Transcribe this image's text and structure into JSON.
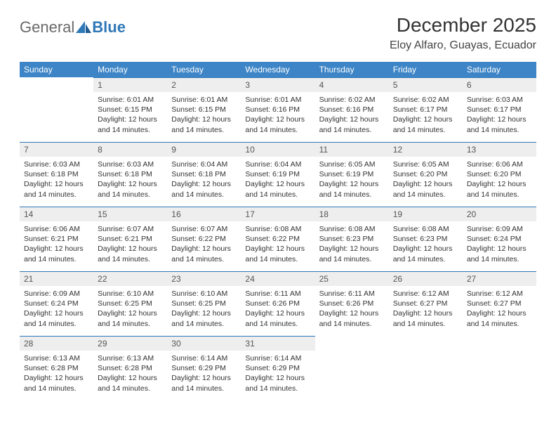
{
  "brand": {
    "part1": "General",
    "part2": "Blue"
  },
  "title": "December 2025",
  "location": "Eloy Alfaro, Guayas, Ecuador",
  "colors": {
    "header_bg": "#3d85c6",
    "header_fg": "#ffffff",
    "daynum_bg": "#eeeeee",
    "daynum_border": "#2f78b7",
    "text": "#333333"
  },
  "weekdays": [
    "Sunday",
    "Monday",
    "Tuesday",
    "Wednesday",
    "Thursday",
    "Friday",
    "Saturday"
  ],
  "weeks": [
    [
      null,
      {
        "n": "1",
        "sunrise": "Sunrise: 6:01 AM",
        "sunset": "Sunset: 6:15 PM",
        "daylight": "Daylight: 12 hours and 14 minutes."
      },
      {
        "n": "2",
        "sunrise": "Sunrise: 6:01 AM",
        "sunset": "Sunset: 6:15 PM",
        "daylight": "Daylight: 12 hours and 14 minutes."
      },
      {
        "n": "3",
        "sunrise": "Sunrise: 6:01 AM",
        "sunset": "Sunset: 6:16 PM",
        "daylight": "Daylight: 12 hours and 14 minutes."
      },
      {
        "n": "4",
        "sunrise": "Sunrise: 6:02 AM",
        "sunset": "Sunset: 6:16 PM",
        "daylight": "Daylight: 12 hours and 14 minutes."
      },
      {
        "n": "5",
        "sunrise": "Sunrise: 6:02 AM",
        "sunset": "Sunset: 6:17 PM",
        "daylight": "Daylight: 12 hours and 14 minutes."
      },
      {
        "n": "6",
        "sunrise": "Sunrise: 6:03 AM",
        "sunset": "Sunset: 6:17 PM",
        "daylight": "Daylight: 12 hours and 14 minutes."
      }
    ],
    [
      {
        "n": "7",
        "sunrise": "Sunrise: 6:03 AM",
        "sunset": "Sunset: 6:18 PM",
        "daylight": "Daylight: 12 hours and 14 minutes."
      },
      {
        "n": "8",
        "sunrise": "Sunrise: 6:03 AM",
        "sunset": "Sunset: 6:18 PM",
        "daylight": "Daylight: 12 hours and 14 minutes."
      },
      {
        "n": "9",
        "sunrise": "Sunrise: 6:04 AM",
        "sunset": "Sunset: 6:18 PM",
        "daylight": "Daylight: 12 hours and 14 minutes."
      },
      {
        "n": "10",
        "sunrise": "Sunrise: 6:04 AM",
        "sunset": "Sunset: 6:19 PM",
        "daylight": "Daylight: 12 hours and 14 minutes."
      },
      {
        "n": "11",
        "sunrise": "Sunrise: 6:05 AM",
        "sunset": "Sunset: 6:19 PM",
        "daylight": "Daylight: 12 hours and 14 minutes."
      },
      {
        "n": "12",
        "sunrise": "Sunrise: 6:05 AM",
        "sunset": "Sunset: 6:20 PM",
        "daylight": "Daylight: 12 hours and 14 minutes."
      },
      {
        "n": "13",
        "sunrise": "Sunrise: 6:06 AM",
        "sunset": "Sunset: 6:20 PM",
        "daylight": "Daylight: 12 hours and 14 minutes."
      }
    ],
    [
      {
        "n": "14",
        "sunrise": "Sunrise: 6:06 AM",
        "sunset": "Sunset: 6:21 PM",
        "daylight": "Daylight: 12 hours and 14 minutes."
      },
      {
        "n": "15",
        "sunrise": "Sunrise: 6:07 AM",
        "sunset": "Sunset: 6:21 PM",
        "daylight": "Daylight: 12 hours and 14 minutes."
      },
      {
        "n": "16",
        "sunrise": "Sunrise: 6:07 AM",
        "sunset": "Sunset: 6:22 PM",
        "daylight": "Daylight: 12 hours and 14 minutes."
      },
      {
        "n": "17",
        "sunrise": "Sunrise: 6:08 AM",
        "sunset": "Sunset: 6:22 PM",
        "daylight": "Daylight: 12 hours and 14 minutes."
      },
      {
        "n": "18",
        "sunrise": "Sunrise: 6:08 AM",
        "sunset": "Sunset: 6:23 PM",
        "daylight": "Daylight: 12 hours and 14 minutes."
      },
      {
        "n": "19",
        "sunrise": "Sunrise: 6:08 AM",
        "sunset": "Sunset: 6:23 PM",
        "daylight": "Daylight: 12 hours and 14 minutes."
      },
      {
        "n": "20",
        "sunrise": "Sunrise: 6:09 AM",
        "sunset": "Sunset: 6:24 PM",
        "daylight": "Daylight: 12 hours and 14 minutes."
      }
    ],
    [
      {
        "n": "21",
        "sunrise": "Sunrise: 6:09 AM",
        "sunset": "Sunset: 6:24 PM",
        "daylight": "Daylight: 12 hours and 14 minutes."
      },
      {
        "n": "22",
        "sunrise": "Sunrise: 6:10 AM",
        "sunset": "Sunset: 6:25 PM",
        "daylight": "Daylight: 12 hours and 14 minutes."
      },
      {
        "n": "23",
        "sunrise": "Sunrise: 6:10 AM",
        "sunset": "Sunset: 6:25 PM",
        "daylight": "Daylight: 12 hours and 14 minutes."
      },
      {
        "n": "24",
        "sunrise": "Sunrise: 6:11 AM",
        "sunset": "Sunset: 6:26 PM",
        "daylight": "Daylight: 12 hours and 14 minutes."
      },
      {
        "n": "25",
        "sunrise": "Sunrise: 6:11 AM",
        "sunset": "Sunset: 6:26 PM",
        "daylight": "Daylight: 12 hours and 14 minutes."
      },
      {
        "n": "26",
        "sunrise": "Sunrise: 6:12 AM",
        "sunset": "Sunset: 6:27 PM",
        "daylight": "Daylight: 12 hours and 14 minutes."
      },
      {
        "n": "27",
        "sunrise": "Sunrise: 6:12 AM",
        "sunset": "Sunset: 6:27 PM",
        "daylight": "Daylight: 12 hours and 14 minutes."
      }
    ],
    [
      {
        "n": "28",
        "sunrise": "Sunrise: 6:13 AM",
        "sunset": "Sunset: 6:28 PM",
        "daylight": "Daylight: 12 hours and 14 minutes."
      },
      {
        "n": "29",
        "sunrise": "Sunrise: 6:13 AM",
        "sunset": "Sunset: 6:28 PM",
        "daylight": "Daylight: 12 hours and 14 minutes."
      },
      {
        "n": "30",
        "sunrise": "Sunrise: 6:14 AM",
        "sunset": "Sunset: 6:29 PM",
        "daylight": "Daylight: 12 hours and 14 minutes."
      },
      {
        "n": "31",
        "sunrise": "Sunrise: 6:14 AM",
        "sunset": "Sunset: 6:29 PM",
        "daylight": "Daylight: 12 hours and 14 minutes."
      },
      null,
      null,
      null
    ]
  ]
}
